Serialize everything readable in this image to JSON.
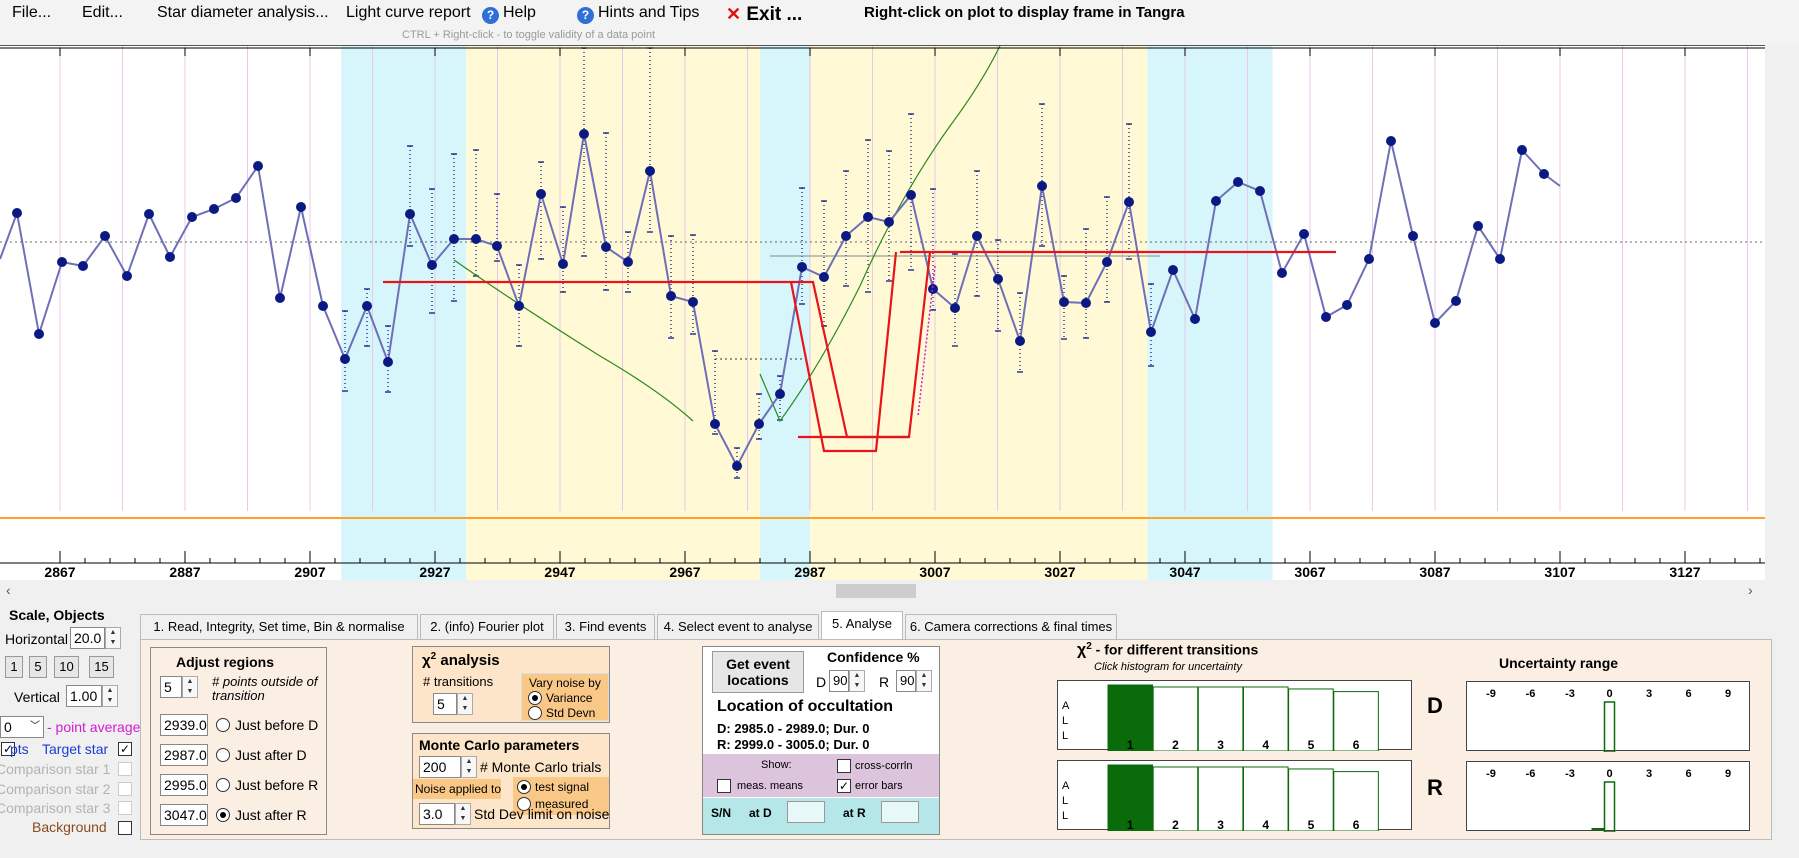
{
  "menu": {
    "file": "File...",
    "edit": "Edit...",
    "star_diameter": "Star diameter analysis...",
    "light_curve": "Light curve report",
    "help": "Help",
    "hints": "Hints and Tips",
    "exit": "Exit ...",
    "right_click_hint": "Right-click on plot to display frame in Tangra",
    "ctrl_hint": "CTRL + Right-click  -  to toggle validity of a data point"
  },
  "plot": {
    "x_ticks": [
      "2867",
      "2887",
      "2907",
      "2927",
      "2947",
      "2967",
      "2987",
      "3007",
      "3027",
      "3047",
      "3067",
      "3087",
      "3107",
      "3127"
    ]
  },
  "colors": {
    "cyan_region": "#d6f6fb",
    "yellow_region": "#fff9d6",
    "data_line": "#6f6fb8",
    "points": "#0b1a82",
    "model": "#e8141c",
    "fit_green": "#2a8a1f",
    "background_line": "#ffa22a"
  },
  "left": {
    "scale_objects": "Scale,  Objects",
    "horizontal_label": "Horizontal",
    "horizontal_value": "20.0",
    "scale_buttons": [
      "1",
      "5",
      "10",
      "15"
    ],
    "vertical_label": "Vertical",
    "vertical_value": "1.00",
    "average_value": "0",
    "average_label": "- point average",
    "target_prefix": "pts",
    "target_star": "Target star",
    "comp1": "Comparison star 1",
    "comp2": "Comparison star 2",
    "comp3": "Comparison star 3",
    "background": "Background"
  },
  "tabs": [
    "1.  Read, Integrity, Set time, Bin & normalise",
    "2. (info)  Fourier plot",
    "3. Find events",
    "4. Select event to analyse",
    "5. Analyse",
    "6. Camera corrections & final times"
  ],
  "adjust": {
    "title": "Adjust regions",
    "points_value": "5",
    "points_label": "# points outside of transition",
    "rows": [
      {
        "value": "2939.0",
        "label": "Just before D"
      },
      {
        "value": "2987.0",
        "label": "Just after D"
      },
      {
        "value": "2995.0",
        "label": "Just before R"
      },
      {
        "value": "3047.0",
        "label": "Just after R"
      }
    ]
  },
  "chi": {
    "title": "χ ² analysis",
    "chi_symbol": "χ",
    "chi_exp": "2",
    "chi_rest": " analysis",
    "transitions_label": "# transitions",
    "transitions_value": "5",
    "vary_label": "Vary noise by",
    "variance": "Variance",
    "stddev": "Std Devn"
  },
  "monte": {
    "title": "Monte Carlo parameters",
    "trials_value": "200",
    "trials_label": "# Monte Carlo trials",
    "noise_label": "Noise applied to",
    "test_signal": "test signal",
    "measured": "measured",
    "limit_value": "3.0",
    "limit_label": "Std Dev limit on noise"
  },
  "event": {
    "button": "Get event locations",
    "confidence": "Confidence %",
    "d_label": "D",
    "d_value": "90",
    "r_label": "R",
    "r_value": "90",
    "location_title": "Location of occultation",
    "d_line": "D: 2985.0 - 2989.0; Dur. 0",
    "r_line": "R: 2999.0 - 3005.0; Dur. 0",
    "show": "Show:",
    "cross_corrln": "cross-corrln",
    "meas_means": "meas. means",
    "error_bars": "error bars",
    "sn": "S/N",
    "at_d": "at D",
    "at_r": "at R"
  },
  "hist": {
    "title_chi": "χ",
    "title_exp": "2",
    "title_rest": " - for different transitions",
    "subtitle": "Click histogram for uncertainty",
    "axis_letters": [
      "A",
      "L",
      "L"
    ],
    "bins": [
      "1",
      "2",
      "3",
      "4",
      "5",
      "6"
    ],
    "d_label": "D",
    "r_label": "R",
    "d_values": [
      1.0,
      0.97,
      0.97,
      0.97,
      0.94,
      0.9
    ],
    "r_values": [
      1.0,
      0.97,
      0.97,
      0.97,
      0.94,
      0.9
    ]
  },
  "uncert": {
    "title": "Uncertainty range",
    "ticks": [
      "-9",
      "-6",
      "-3",
      "0",
      "3",
      "6",
      "9"
    ]
  }
}
